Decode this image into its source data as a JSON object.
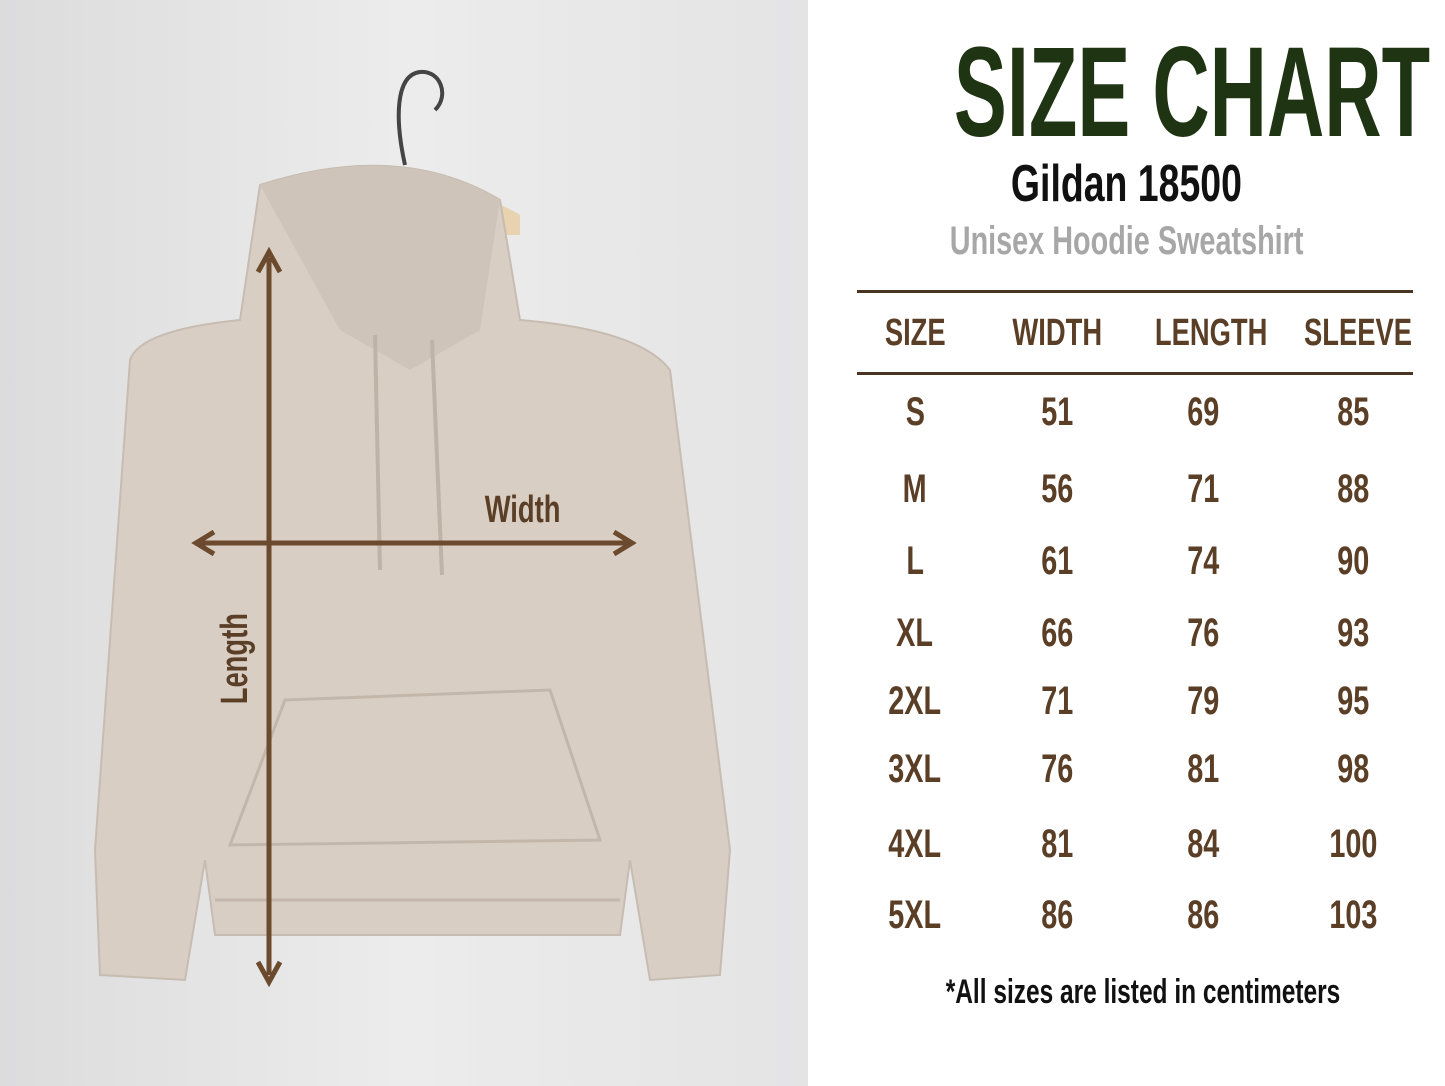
{
  "title": "SIZE CHART",
  "subtitle": "Gildan 18500",
  "product": "Unisex Hoodie Sweatshirt",
  "diagram": {
    "width_label": "Width",
    "length_label": "Length"
  },
  "table": {
    "headers": [
      "SIZE",
      "WIDTH",
      "LENGTH",
      "SLEEVE"
    ],
    "rows": [
      [
        "S",
        "51",
        "69",
        "85"
      ],
      [
        "M",
        "56",
        "71",
        "88"
      ],
      [
        "L",
        "61",
        "74",
        "90"
      ],
      [
        "XL",
        "66",
        "76",
        "93"
      ],
      [
        "2XL",
        "71",
        "79",
        "95"
      ],
      [
        "3XL",
        "76",
        "81",
        "98"
      ],
      [
        "4XL",
        "81",
        "84",
        "100"
      ],
      [
        "5XL",
        "86",
        "86",
        "103"
      ]
    ]
  },
  "note": "*All sizes are listed in centimeters",
  "colors": {
    "title": "#1e3412",
    "text": "#5b3e26",
    "arrow": "#6b4a2e",
    "hoodie": "#d8cec4"
  }
}
